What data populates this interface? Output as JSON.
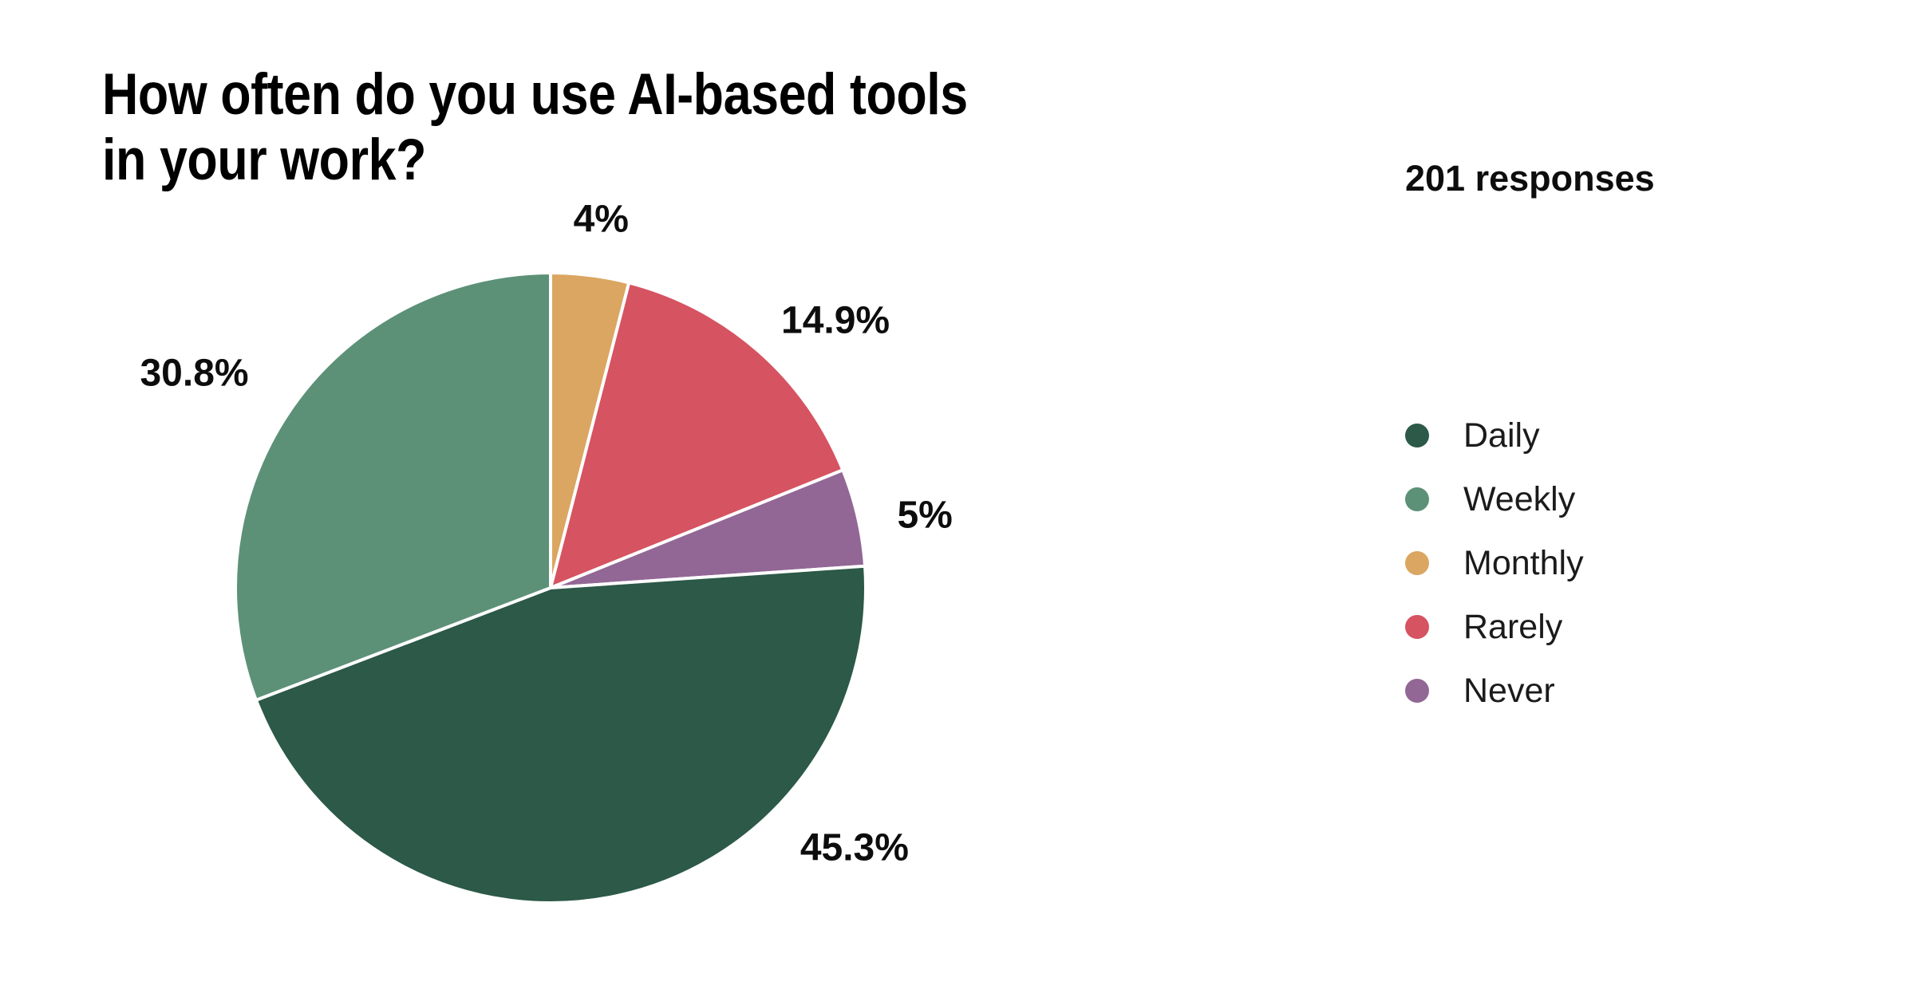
{
  "page": {
    "title": "How often do you use AI-based tools\nin your work?",
    "responses_label": "201 responses"
  },
  "chart_data": {
    "type": "pie",
    "title": "How often do you use AI-based tools in your work?",
    "subtitle": "201 responses",
    "total_responses": 201,
    "categories": [
      "Daily",
      "Weekly",
      "Monthly",
      "Rarely",
      "Never"
    ],
    "values_percent": [
      45.3,
      30.8,
      4,
      14.9,
      5
    ],
    "slices": [
      {
        "name": "Monthly",
        "value": 4,
        "label": "4%",
        "color": "#DBA662",
        "label_angle_deg": 7.8,
        "label_radius_factor": 1.18
      },
      {
        "name": "Rarely",
        "value": 14.9,
        "label": "14.9%",
        "color": "#D65361",
        "label_angle_deg": 46.8,
        "label_radius_factor": 1.24
      },
      {
        "name": "Never",
        "value": 5,
        "label": "5%",
        "color": "#926795",
        "label_angle_deg": 79.0,
        "label_radius_factor": 1.21
      },
      {
        "name": "Daily",
        "value": 45.3,
        "label": "45.3%",
        "color": "#2C5948",
        "label_angle_deg": 130.6,
        "label_radius_factor": 1.27
      },
      {
        "name": "Weekly",
        "value": 30.8,
        "label": "30.8%",
        "color": "#5C9177",
        "label_angle_deg": 301.1,
        "label_radius_factor": 1.32
      }
    ],
    "layout": {
      "start_angle_deg": 0,
      "direction": "clockwise",
      "slice_border_color": "#ffffff",
      "legend_position": "right",
      "grid": false
    },
    "legend": {
      "items": [
        "Daily",
        "Weekly",
        "Monthly",
        "Rarely",
        "Never"
      ]
    }
  }
}
